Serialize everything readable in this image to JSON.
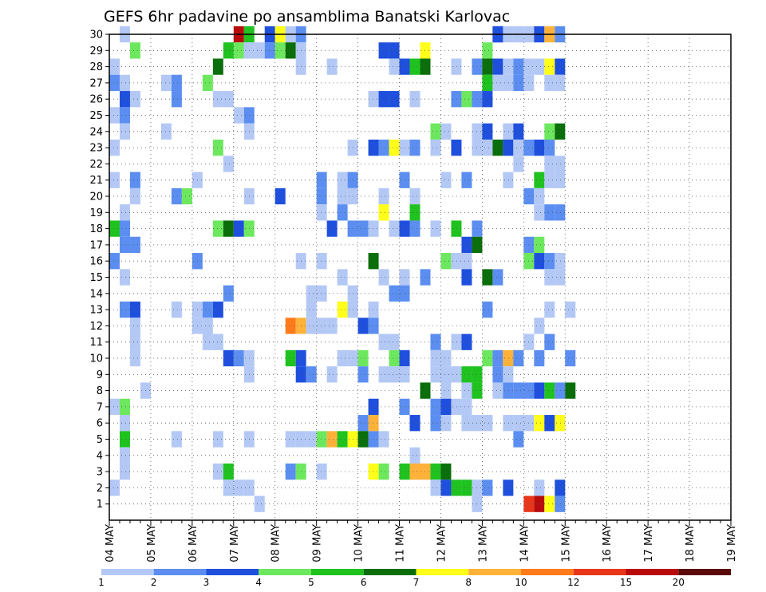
{
  "chart_data": {
    "type": "heatmap",
    "title": "GEFS 6hr padavine po ansamblima Banatski Karlovac",
    "xlabel": "",
    "ylabel": "",
    "x_ticks": [
      "04 MAY",
      "05 MAY",
      "06 MAY",
      "07 MAY",
      "08 MAY",
      "09 MAY",
      "10 MAY",
      "11 MAY",
      "12 MAY",
      "13 MAY",
      "14 MAY",
      "15 MAY",
      "16 MAY",
      "17 MAY",
      "18 MAY",
      "19 MAY"
    ],
    "y_ticks": [
      "1",
      "2",
      "3",
      "4",
      "5",
      "6",
      "7",
      "8",
      "9",
      "10",
      "11",
      "12",
      "13",
      "14",
      "15",
      "16",
      "17",
      "18",
      "19",
      "20",
      "21",
      "22",
      "23",
      "24",
      "25",
      "26",
      "27",
      "28",
      "29",
      "30"
    ],
    "x_range_steps": [
      0,
      60
    ],
    "y_range": [
      0,
      30
    ],
    "grid": true,
    "colorbar_labels": [
      "1",
      "2",
      "3",
      "4",
      "5",
      "6",
      "7",
      "8",
      "10",
      "12",
      "15",
      "20"
    ],
    "colorbar_colors": [
      "#b3c8f5",
      "#5b8ef0",
      "#1f4fdd",
      "#6de85e",
      "#1fc21f",
      "#0a6e0a",
      "#ffff1a",
      "#ffb23a",
      "#ff7a1a",
      "#e8361a",
      "#b80c0c",
      "#5a0a0a"
    ],
    "cells_note": "each cell = [x_step, member, color_index]; x_step counts 6-hour steps from 04 MAY 00UTC",
    "cells": [
      [
        1,
        30,
        0
      ],
      [
        12,
        30,
        10
      ],
      [
        13,
        30,
        4
      ],
      [
        15,
        30,
        2
      ],
      [
        16,
        30,
        6
      ],
      [
        17,
        30,
        0
      ],
      [
        18,
        30,
        1
      ],
      [
        37,
        30,
        1
      ],
      [
        37,
        30,
        2
      ],
      [
        38,
        30,
        0
      ],
      [
        39,
        30,
        0
      ],
      [
        40,
        30,
        0
      ],
      [
        41,
        30,
        2
      ],
      [
        42,
        30,
        7
      ],
      [
        43,
        30,
        1
      ],
      [
        2,
        29,
        3
      ],
      [
        11,
        29,
        4
      ],
      [
        12,
        29,
        3
      ],
      [
        13,
        29,
        0
      ],
      [
        14,
        29,
        0
      ],
      [
        15,
        29,
        1
      ],
      [
        16,
        29,
        3
      ],
      [
        17,
        29,
        5
      ],
      [
        18,
        29,
        0
      ],
      [
        26,
        29,
        2
      ],
      [
        27,
        29,
        2
      ],
      [
        30,
        29,
        6
      ],
      [
        36,
        29,
        3
      ],
      [
        0,
        28,
        0
      ],
      [
        10,
        28,
        5
      ],
      [
        18,
        28,
        0
      ],
      [
        21,
        28,
        0
      ],
      [
        27,
        28,
        0
      ],
      [
        28,
        28,
        2
      ],
      [
        29,
        28,
        4
      ],
      [
        30,
        28,
        5
      ],
      [
        33,
        28,
        0
      ],
      [
        35,
        28,
        1
      ],
      [
        36,
        28,
        5
      ],
      [
        37,
        28,
        2
      ],
      [
        38,
        28,
        0
      ],
      [
        39,
        28,
        1
      ],
      [
        40,
        28,
        0
      ],
      [
        41,
        28,
        0
      ],
      [
        42,
        28,
        6
      ],
      [
        43,
        28,
        2
      ],
      [
        0,
        27,
        1
      ],
      [
        1,
        27,
        0
      ],
      [
        5,
        27,
        0
      ],
      [
        6,
        27,
        1
      ],
      [
        9,
        27,
        3
      ],
      [
        36,
        27,
        4
      ],
      [
        37,
        27,
        0
      ],
      [
        38,
        27,
        0
      ],
      [
        39,
        27,
        1
      ],
      [
        40,
        27,
        0
      ],
      [
        42,
        27,
        0
      ],
      [
        43,
        27,
        0
      ],
      [
        1,
        26,
        2
      ],
      [
        2,
        26,
        0
      ],
      [
        6,
        26,
        1
      ],
      [
        10,
        26,
        0
      ],
      [
        11,
        26,
        0
      ],
      [
        25,
        26,
        0
      ],
      [
        26,
        26,
        2
      ],
      [
        27,
        26,
        2
      ],
      [
        29,
        26,
        0
      ],
      [
        33,
        26,
        1
      ],
      [
        34,
        26,
        3
      ],
      [
        35,
        26,
        1
      ],
      [
        36,
        26,
        2
      ],
      [
        0,
        25,
        0
      ],
      [
        1,
        25,
        1
      ],
      [
        12,
        25,
        0
      ],
      [
        13,
        25,
        1
      ],
      [
        1,
        24,
        0
      ],
      [
        5,
        24,
        0
      ],
      [
        13,
        24,
        0
      ],
      [
        31,
        24,
        3
      ],
      [
        32,
        24,
        0
      ],
      [
        35,
        24,
        0
      ],
      [
        36,
        24,
        2
      ],
      [
        38,
        24,
        0
      ],
      [
        39,
        24,
        2
      ],
      [
        42,
        24,
        3
      ],
      [
        43,
        24,
        5
      ],
      [
        0,
        23,
        0
      ],
      [
        10,
        23,
        3
      ],
      [
        23,
        23,
        0
      ],
      [
        25,
        23,
        2
      ],
      [
        26,
        23,
        1
      ],
      [
        27,
        23,
        6
      ],
      [
        28,
        23,
        0
      ],
      [
        29,
        23,
        1
      ],
      [
        31,
        23,
        0
      ],
      [
        33,
        23,
        2
      ],
      [
        35,
        23,
        0
      ],
      [
        36,
        23,
        0
      ],
      [
        37,
        23,
        5
      ],
      [
        38,
        23,
        2
      ],
      [
        39,
        23,
        0
      ],
      [
        40,
        23,
        1
      ],
      [
        41,
        23,
        2
      ],
      [
        42,
        23,
        1
      ],
      [
        11,
        22,
        0
      ],
      [
        39,
        22,
        0
      ],
      [
        42,
        22,
        0
      ],
      [
        43,
        22,
        0
      ],
      [
        0,
        21,
        0
      ],
      [
        2,
        21,
        1
      ],
      [
        8,
        21,
        0
      ],
      [
        20,
        21,
        1
      ],
      [
        22,
        21,
        0
      ],
      [
        23,
        21,
        1
      ],
      [
        28,
        21,
        1
      ],
      [
        32,
        21,
        0
      ],
      [
        34,
        21,
        1
      ],
      [
        38,
        21,
        0
      ],
      [
        41,
        21,
        4
      ],
      [
        42,
        21,
        0
      ],
      [
        43,
        21,
        0
      ],
      [
        2,
        20,
        0
      ],
      [
        6,
        20,
        1
      ],
      [
        7,
        20,
        3
      ],
      [
        13,
        20,
        0
      ],
      [
        16,
        20,
        2
      ],
      [
        20,
        20,
        1
      ],
      [
        22,
        20,
        0
      ],
      [
        23,
        20,
        0
      ],
      [
        26,
        20,
        0
      ],
      [
        29,
        20,
        0
      ],
      [
        40,
        20,
        1
      ],
      [
        41,
        20,
        0
      ],
      [
        1,
        19,
        0
      ],
      [
        20,
        19,
        0
      ],
      [
        22,
        19,
        1
      ],
      [
        26,
        19,
        6
      ],
      [
        29,
        19,
        4
      ],
      [
        41,
        19,
        0
      ],
      [
        42,
        19,
        1
      ],
      [
        43,
        19,
        1
      ],
      [
        0,
        18,
        4
      ],
      [
        1,
        18,
        1
      ],
      [
        10,
        18,
        3
      ],
      [
        11,
        18,
        5
      ],
      [
        12,
        18,
        2
      ],
      [
        13,
        18,
        3
      ],
      [
        21,
        18,
        2
      ],
      [
        23,
        18,
        1
      ],
      [
        24,
        18,
        1
      ],
      [
        25,
        18,
        0
      ],
      [
        27,
        18,
        0
      ],
      [
        28,
        18,
        2
      ],
      [
        29,
        18,
        1
      ],
      [
        31,
        18,
        0
      ],
      [
        33,
        18,
        4
      ],
      [
        35,
        18,
        1
      ],
      [
        1,
        17,
        1
      ],
      [
        2,
        17,
        1
      ],
      [
        34,
        17,
        2
      ],
      [
        35,
        17,
        5
      ],
      [
        40,
        17,
        1
      ],
      [
        41,
        17,
        3
      ],
      [
        0,
        16,
        1
      ],
      [
        8,
        16,
        1
      ],
      [
        18,
        16,
        0
      ],
      [
        20,
        16,
        0
      ],
      [
        25,
        16,
        5
      ],
      [
        32,
        16,
        3
      ],
      [
        33,
        16,
        0
      ],
      [
        34,
        16,
        0
      ],
      [
        40,
        16,
        3
      ],
      [
        41,
        16,
        2
      ],
      [
        42,
        16,
        1
      ],
      [
        43,
        16,
        0
      ],
      [
        1,
        15,
        0
      ],
      [
        22,
        15,
        0
      ],
      [
        26,
        15,
        0
      ],
      [
        28,
        15,
        0
      ],
      [
        30,
        15,
        1
      ],
      [
        34,
        15,
        2
      ],
      [
        36,
        15,
        5
      ],
      [
        37,
        15,
        1
      ],
      [
        42,
        15,
        0
      ],
      [
        43,
        15,
        0
      ],
      [
        11,
        14,
        1
      ],
      [
        19,
        14,
        0
      ],
      [
        20,
        14,
        0
      ],
      [
        23,
        14,
        0
      ],
      [
        27,
        14,
        1
      ],
      [
        28,
        14,
        1
      ],
      [
        1,
        13,
        1
      ],
      [
        2,
        13,
        2
      ],
      [
        6,
        13,
        0
      ],
      [
        8,
        13,
        0
      ],
      [
        9,
        13,
        1
      ],
      [
        10,
        13,
        2
      ],
      [
        19,
        13,
        0
      ],
      [
        22,
        13,
        6
      ],
      [
        23,
        13,
        0
      ],
      [
        25,
        13,
        0
      ],
      [
        36,
        13,
        1
      ],
      [
        42,
        13,
        0
      ],
      [
        44,
        13,
        0
      ],
      [
        2,
        12,
        0
      ],
      [
        8,
        12,
        0
      ],
      [
        9,
        12,
        0
      ],
      [
        17,
        12,
        8
      ],
      [
        18,
        12,
        7
      ],
      [
        19,
        12,
        0
      ],
      [
        20,
        12,
        0
      ],
      [
        21,
        12,
        0
      ],
      [
        24,
        12,
        2
      ],
      [
        25,
        12,
        1
      ],
      [
        41,
        12,
        0
      ],
      [
        2,
        11,
        0
      ],
      [
        9,
        11,
        0
      ],
      [
        10,
        11,
        0
      ],
      [
        26,
        11,
        0
      ],
      [
        27,
        11,
        0
      ],
      [
        31,
        11,
        1
      ],
      [
        33,
        11,
        0
      ],
      [
        34,
        11,
        2
      ],
      [
        40,
        11,
        0
      ],
      [
        42,
        11,
        1
      ],
      [
        2,
        10,
        0
      ],
      [
        11,
        10,
        2
      ],
      [
        12,
        10,
        1
      ],
      [
        13,
        10,
        0
      ],
      [
        17,
        10,
        4
      ],
      [
        18,
        10,
        2
      ],
      [
        22,
        10,
        0
      ],
      [
        23,
        10,
        0
      ],
      [
        24,
        10,
        3
      ],
      [
        27,
        10,
        3
      ],
      [
        28,
        10,
        2
      ],
      [
        31,
        10,
        0
      ],
      [
        32,
        10,
        0
      ],
      [
        36,
        10,
        3
      ],
      [
        37,
        10,
        1
      ],
      [
        38,
        10,
        7
      ],
      [
        39,
        10,
        1
      ],
      [
        41,
        10,
        1
      ],
      [
        44,
        10,
        1
      ],
      [
        13,
        9,
        0
      ],
      [
        18,
        9,
        2
      ],
      [
        19,
        9,
        1
      ],
      [
        21,
        9,
        0
      ],
      [
        24,
        9,
        1
      ],
      [
        26,
        9,
        0
      ],
      [
        27,
        9,
        0
      ],
      [
        28,
        9,
        0
      ],
      [
        31,
        9,
        0
      ],
      [
        32,
        9,
        0
      ],
      [
        33,
        9,
        0
      ],
      [
        34,
        9,
        4
      ],
      [
        35,
        9,
        4
      ],
      [
        37,
        9,
        1
      ],
      [
        38,
        9,
        0
      ],
      [
        3,
        8,
        0
      ],
      [
        30,
        8,
        5
      ],
      [
        32,
        8,
        0
      ],
      [
        34,
        8,
        0
      ],
      [
        35,
        8,
        4
      ],
      [
        37,
        8,
        0
      ],
      [
        38,
        8,
        1
      ],
      [
        39,
        8,
        1
      ],
      [
        40,
        8,
        1
      ],
      [
        41,
        8,
        2
      ],
      [
        42,
        8,
        4
      ],
      [
        43,
        8,
        1
      ],
      [
        44,
        8,
        5
      ],
      [
        0,
        7,
        0
      ],
      [
        1,
        7,
        3
      ],
      [
        25,
        7,
        2
      ],
      [
        28,
        7,
        1
      ],
      [
        31,
        7,
        1
      ],
      [
        32,
        7,
        2
      ],
      [
        33,
        7,
        0
      ],
      [
        34,
        7,
        0
      ],
      [
        1,
        6,
        0
      ],
      [
        24,
        6,
        1
      ],
      [
        25,
        6,
        7
      ],
      [
        29,
        6,
        2
      ],
      [
        31,
        6,
        1
      ],
      [
        32,
        6,
        0
      ],
      [
        34,
        6,
        0
      ],
      [
        35,
        6,
        0
      ],
      [
        36,
        6,
        0
      ],
      [
        38,
        6,
        0
      ],
      [
        39,
        6,
        0
      ],
      [
        40,
        6,
        0
      ],
      [
        41,
        6,
        6
      ],
      [
        42,
        6,
        2
      ],
      [
        43,
        6,
        6
      ],
      [
        1,
        5,
        4
      ],
      [
        6,
        5,
        0
      ],
      [
        10,
        5,
        0
      ],
      [
        13,
        5,
        0
      ],
      [
        17,
        5,
        0
      ],
      [
        18,
        5,
        0
      ],
      [
        19,
        5,
        0
      ],
      [
        20,
        5,
        3
      ],
      [
        21,
        5,
        7
      ],
      [
        22,
        5,
        4
      ],
      [
        23,
        5,
        6
      ],
      [
        24,
        5,
        5
      ],
      [
        25,
        5,
        1
      ],
      [
        26,
        5,
        0
      ],
      [
        39,
        5,
        1
      ],
      [
        1,
        4,
        0
      ],
      [
        29,
        4,
        0
      ],
      [
        1,
        3,
        0
      ],
      [
        10,
        3,
        0
      ],
      [
        11,
        3,
        4
      ],
      [
        17,
        3,
        1
      ],
      [
        18,
        3,
        3
      ],
      [
        20,
        3,
        0
      ],
      [
        25,
        3,
        6
      ],
      [
        26,
        3,
        3
      ],
      [
        28,
        3,
        4
      ],
      [
        29,
        3,
        7
      ],
      [
        30,
        3,
        7
      ],
      [
        31,
        3,
        4
      ],
      [
        32,
        3,
        5
      ],
      [
        0,
        2,
        0
      ],
      [
        11,
        2,
        0
      ],
      [
        12,
        2,
        0
      ],
      [
        13,
        2,
        0
      ],
      [
        31,
        2,
        0
      ],
      [
        32,
        2,
        2
      ],
      [
        33,
        2,
        4
      ],
      [
        34,
        2,
        4
      ],
      [
        35,
        2,
        0
      ],
      [
        36,
        2,
        1
      ],
      [
        38,
        2,
        2
      ],
      [
        41,
        2,
        0
      ],
      [
        43,
        2,
        2
      ],
      [
        14,
        1,
        0
      ],
      [
        35,
        1,
        0
      ],
      [
        40,
        1,
        9
      ],
      [
        41,
        1,
        10
      ],
      [
        42,
        1,
        6
      ],
      [
        43,
        1,
        1
      ]
    ]
  }
}
